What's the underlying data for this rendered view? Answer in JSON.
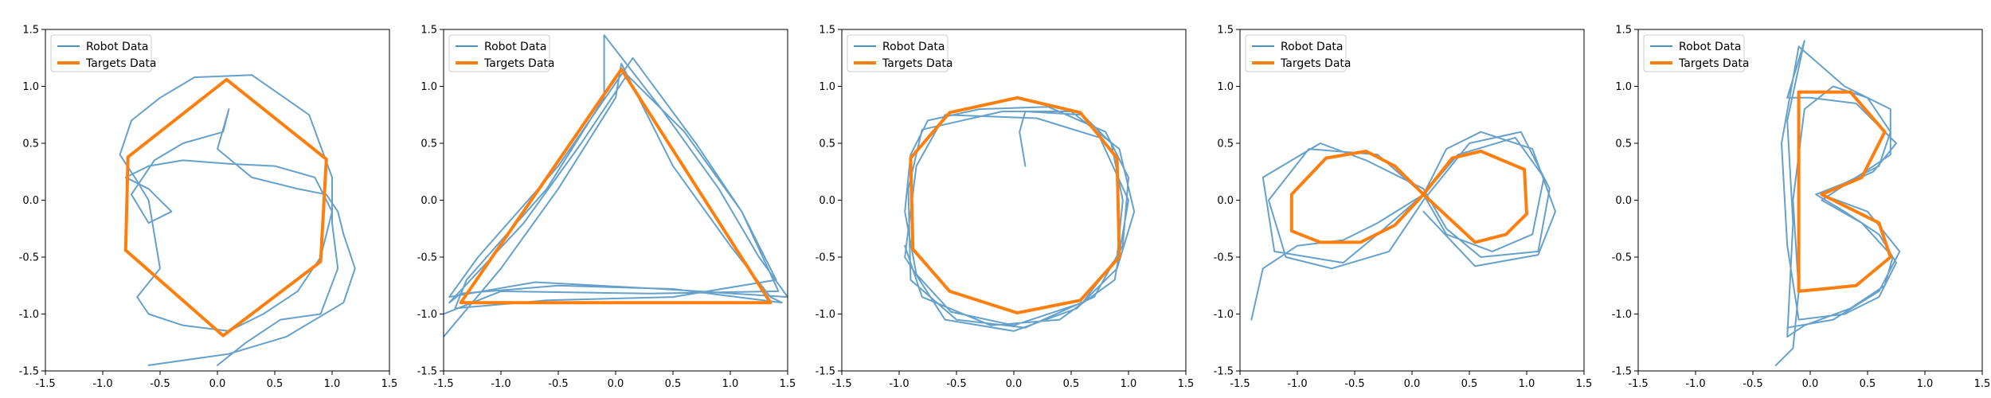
{
  "chart_data": [
    {
      "type": "line",
      "xlim": [
        -1.5,
        1.5
      ],
      "ylim": [
        -1.5,
        1.5
      ],
      "xticks": [
        "-1.5",
        "-1.0",
        "-0.5",
        "0.0",
        "0.5",
        "1.0",
        "1.5"
      ],
      "yticks": [
        "-1.5",
        "-1.0",
        "-0.5",
        "0.0",
        "0.5",
        "1.0",
        "1.5"
      ],
      "grid": false,
      "legend_position": "top-left",
      "series": [
        {
          "name": "Robot Data",
          "color": "#4a90c2",
          "x": [
            0.0,
            0.25,
            0.55,
            0.9,
            1.05,
            1.0,
            1.0,
            0.8,
            0.3,
            -0.2,
            -0.5,
            -0.75,
            -0.85,
            -0.72,
            -0.6,
            -0.55,
            -0.5,
            -0.7,
            -0.6,
            -0.3,
            0.1,
            0.4,
            0.7,
            0.9,
            1.0,
            0.85,
            0.5,
            0.1,
            -0.3,
            -0.6,
            -0.8,
            -0.6,
            -0.4,
            -0.6,
            -0.75,
            -0.55,
            -0.3,
            0.05,
            0.1,
            0.0,
            0.3,
            0.7,
            0.95,
            1.05,
            1.1,
            1.2,
            1.1,
            0.6,
            0.1,
            -0.6
          ],
          "y": [
            -1.45,
            -1.25,
            -1.05,
            -1.0,
            -0.6,
            -0.2,
            0.2,
            0.75,
            1.1,
            1.08,
            0.9,
            0.7,
            0.4,
            0.2,
            0.0,
            -0.3,
            -0.6,
            -0.85,
            -1.0,
            -1.1,
            -1.15,
            -1.0,
            -0.8,
            -0.5,
            -0.1,
            0.2,
            0.3,
            0.32,
            0.35,
            0.3,
            0.2,
            0.1,
            -0.1,
            -0.2,
            0.05,
            0.35,
            0.5,
            0.6,
            0.8,
            0.45,
            0.2,
            0.1,
            0.05,
            -0.1,
            -0.3,
            -0.6,
            -0.9,
            -1.2,
            -1.35,
            -1.45
          ]
        },
        {
          "name": "Targets Data",
          "color": "#ff7f0e",
          "x": [
            0.08,
            0.95,
            0.9,
            0.05,
            -0.8,
            -0.78,
            0.08
          ],
          "y": [
            1.06,
            0.36,
            -0.54,
            -1.19,
            -0.44,
            0.38,
            1.06
          ]
        }
      ]
    },
    {
      "type": "line",
      "xlim": [
        -1.5,
        1.5
      ],
      "ylim": [
        -1.5,
        1.5
      ],
      "xticks": [
        "-1.5",
        "-1.0",
        "-0.5",
        "0.0",
        "0.5",
        "1.0",
        "1.5"
      ],
      "yticks": [
        "-1.5",
        "-1.0",
        "-0.5",
        "0.0",
        "0.5",
        "1.0",
        "1.5"
      ],
      "grid": false,
      "legend_position": "top-left",
      "series": [
        {
          "name": "Robot Data",
          "color": "#4a90c2",
          "x": [
            -1.5,
            -1.0,
            -0.5,
            0.0,
            0.05,
            0.5,
            1.0,
            1.35,
            1.45,
            0.5,
            -0.5,
            -1.35,
            -1.45,
            -0.8,
            -0.3,
            0.1,
            0.6,
            1.1,
            1.4,
            0.5,
            -0.6,
            -1.4,
            -1.3,
            -0.6,
            -0.1,
            -0.1,
            0.4,
            0.9,
            1.25,
            1.5,
            0.4,
            -0.7,
            -1.45,
            -1.2,
            -0.5,
            0.15,
            0.7,
            1.1,
            1.42,
            0.3,
            -1.0,
            -1.5
          ],
          "y": [
            -1.2,
            -0.6,
            0.1,
            0.9,
            1.2,
            0.3,
            -0.4,
            -0.85,
            -0.9,
            -0.78,
            -0.75,
            -0.82,
            -0.9,
            -0.2,
            0.5,
            1.1,
            0.6,
            -0.1,
            -0.7,
            -0.85,
            -0.88,
            -0.95,
            -0.7,
            0.1,
            0.9,
            1.45,
            0.8,
            0.1,
            -0.5,
            -0.85,
            -0.78,
            -0.72,
            -0.85,
            -0.5,
            0.3,
            1.25,
            0.5,
            -0.1,
            -0.8,
            -0.82,
            -0.8,
            -1.0
          ]
        },
        {
          "name": "Targets Data",
          "color": "#ff7f0e",
          "x": [
            0.05,
            1.35,
            -1.35,
            0.05
          ],
          "y": [
            1.15,
            -0.9,
            -0.9,
            1.15
          ]
        }
      ]
    },
    {
      "type": "line",
      "xlim": [
        -1.5,
        1.5
      ],
      "ylim": [
        -1.5,
        1.5
      ],
      "xticks": [
        "-1.5",
        "-1.0",
        "-0.5",
        "0.0",
        "0.5",
        "1.0",
        "1.5"
      ],
      "yticks": [
        "-1.5",
        "-1.0",
        "-0.5",
        "0.0",
        "0.5",
        "1.0",
        "1.5"
      ],
      "grid": false,
      "legend_position": "top-left",
      "series": [
        {
          "name": "Robot Data",
          "color": "#4a90c2",
          "x": [
            0.1,
            0.05,
            0.1,
            0.6,
            0.85,
            0.95,
            0.9,
            0.6,
            0.0,
            -0.55,
            -0.85,
            -0.95,
            -0.9,
            -0.75,
            -0.3,
            0.3,
            0.8,
            1.0,
            0.95,
            0.7,
            0.1,
            -0.5,
            -0.9,
            -0.92,
            -0.8,
            -0.1,
            0.5,
            0.92,
            1.05,
            0.9,
            0.55,
            0.0,
            -0.6,
            -0.95,
            -0.85,
            -0.6,
            0.2,
            0.75,
            1.0,
            0.88,
            0.4,
            -0.2,
            -0.8,
            -0.95
          ],
          "y": [
            0.3,
            0.6,
            0.78,
            0.75,
            0.5,
            0.0,
            -0.5,
            -0.9,
            -1.1,
            -0.98,
            -0.65,
            -0.1,
            0.4,
            0.7,
            0.8,
            0.82,
            0.6,
            0.2,
            -0.4,
            -0.85,
            -1.12,
            -1.05,
            -0.7,
            0.1,
            0.62,
            0.78,
            0.78,
            0.45,
            -0.1,
            -0.6,
            -0.95,
            -1.15,
            -1.05,
            -0.5,
            0.3,
            0.75,
            0.72,
            0.55,
            0.0,
            -0.7,
            -1.05,
            -1.1,
            -0.85,
            -0.4
          ]
        },
        {
          "name": "Targets Data",
          "color": "#ff7f0e",
          "x": [
            0.03,
            0.58,
            0.9,
            0.92,
            0.58,
            0.03,
            -0.56,
            -0.88,
            -0.9,
            -0.56,
            0.03
          ],
          "y": [
            0.9,
            0.77,
            0.37,
            -0.5,
            -0.88,
            -0.99,
            -0.8,
            -0.43,
            0.37,
            0.77,
            0.9
          ]
        }
      ]
    },
    {
      "type": "line",
      "xlim": [
        -1.5,
        1.5
      ],
      "ylim": [
        -1.5,
        1.5
      ],
      "xticks": [
        "-1.5",
        "-1.0",
        "-0.5",
        "0.0",
        "0.5",
        "1.0",
        "1.5"
      ],
      "yticks": [
        "-1.5",
        "-1.0",
        "-0.5",
        "0.0",
        "0.5",
        "1.0",
        "1.5"
      ],
      "grid": false,
      "legend_position": "top-left",
      "series": [
        {
          "name": "Robot Data",
          "color": "#4a90c2",
          "x": [
            -1.4,
            -1.3,
            -1.0,
            -0.6,
            -0.3,
            0.1,
            0.4,
            0.9,
            1.15,
            1.05,
            0.7,
            0.3,
            0.1,
            -0.3,
            -0.9,
            -1.25,
            -1.1,
            -0.7,
            -0.2,
            0.1,
            0.5,
            0.95,
            1.2,
            1.1,
            0.6,
            0.3,
            0.1,
            -0.4,
            -0.8,
            -1.3,
            -1.2,
            -0.6,
            -0.3,
            0.1,
            0.3,
            0.6,
            1.05,
            1.25,
            1.1,
            0.55,
            0.1
          ],
          "y": [
            -1.05,
            -0.6,
            -0.4,
            -0.35,
            -0.2,
            0.05,
            0.4,
            0.55,
            0.2,
            -0.3,
            -0.45,
            -0.3,
            0.05,
            0.4,
            0.45,
            0.0,
            -0.5,
            -0.6,
            -0.45,
            0.0,
            0.5,
            0.6,
            0.1,
            -0.45,
            -0.5,
            -0.25,
            0.1,
            0.35,
            0.5,
            0.2,
            -0.45,
            -0.55,
            -0.3,
            0.05,
            0.45,
            0.6,
            0.45,
            -0.1,
            -0.48,
            -0.58,
            -0.1
          ]
        },
        {
          "name": "Targets Data",
          "color": "#ff7f0e",
          "x": [
            0.1,
            0.35,
            0.6,
            0.98,
            1.0,
            0.82,
            0.55,
            0.1,
            -0.15,
            -0.4,
            -0.75,
            -1.05,
            -1.05,
            -0.8,
            -0.45,
            -0.15,
            0.1
          ],
          "y": [
            0.05,
            0.37,
            0.43,
            0.27,
            -0.12,
            -0.3,
            -0.37,
            0.05,
            0.3,
            0.43,
            0.37,
            0.05,
            -0.27,
            -0.37,
            -0.37,
            -0.22,
            0.05
          ]
        }
      ]
    },
    {
      "type": "line",
      "xlim": [
        -1.5,
        1.5
      ],
      "ylim": [
        -1.5,
        1.5
      ],
      "xticks": [
        "-1.5",
        "-1.0",
        "-0.5",
        "0.0",
        "0.5",
        "1.0",
        "1.5"
      ],
      "yticks": [
        "-1.5",
        "-1.0",
        "-0.5",
        "0.0",
        "0.5",
        "1.0",
        "1.5"
      ],
      "grid": false,
      "legend_position": "top-left",
      "series": [
        {
          "name": "Robot Data",
          "color": "#4a90c2",
          "x": [
            -0.3,
            -0.15,
            -0.1,
            -0.15,
            -0.05,
            0.2,
            0.5,
            0.7,
            0.6,
            0.3,
            0.05,
            0.3,
            0.6,
            0.75,
            0.6,
            0.3,
            -0.1,
            -0.2,
            -0.25,
            -0.1,
            0.3,
            0.7,
            0.7,
            0.4,
            0.1,
            0.45,
            0.72,
            0.65,
            0.35,
            -0.05,
            -0.2,
            -0.15,
            -0.2,
            -0.05,
            -0.2,
            0.0,
            0.4,
            0.75,
            0.55,
            0.1,
            0.5,
            0.78,
            0.6,
            0.2,
            -0.2
          ],
          "y": [
            -1.45,
            -1.3,
            -0.8,
            0.0,
            0.8,
            1.0,
            0.9,
            0.6,
            0.3,
            0.15,
            0.05,
            -0.1,
            -0.3,
            -0.55,
            -0.85,
            -1.0,
            -1.05,
            -0.4,
            0.5,
            1.35,
            1.0,
            0.8,
            0.4,
            0.2,
            0.0,
            -0.2,
            -0.5,
            -0.75,
            -0.95,
            -1.1,
            -1.2,
            -0.2,
            0.7,
            1.4,
            0.9,
            0.9,
            0.85,
            0.5,
            0.25,
            0.05,
            -0.1,
            -0.45,
            -0.8,
            -1.05,
            -1.12
          ]
        },
        {
          "name": "Targets Data",
          "color": "#ff7f0e",
          "x": [
            -0.1,
            0.35,
            0.65,
            0.45,
            0.1,
            0.6,
            0.7,
            0.4,
            -0.1,
            -0.1
          ],
          "y": [
            0.95,
            0.95,
            0.6,
            0.2,
            0.05,
            -0.2,
            -0.5,
            -0.75,
            -0.8,
            0.95
          ]
        }
      ]
    }
  ]
}
